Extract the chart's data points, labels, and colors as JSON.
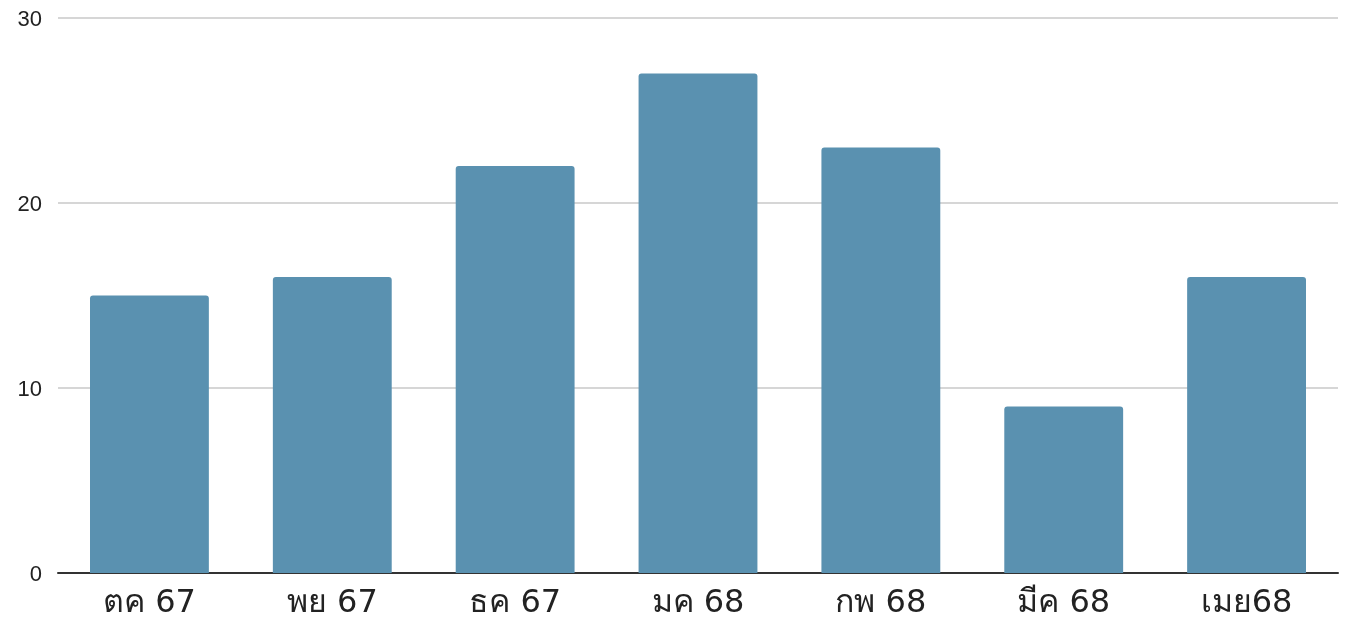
{
  "chart_data": {
    "type": "bar",
    "categories": [
      "ตค 67",
      "พย 67",
      "ธค 67",
      "มค 68",
      "กพ 68",
      "มีค 68",
      "เมย68"
    ],
    "values": [
      15,
      16,
      22,
      27,
      23,
      9,
      16
    ],
    "color": "#5a91b0",
    "ylim": [
      0,
      30
    ],
    "yticks": [
      0,
      10,
      20,
      30
    ],
    "grid": "y"
  }
}
